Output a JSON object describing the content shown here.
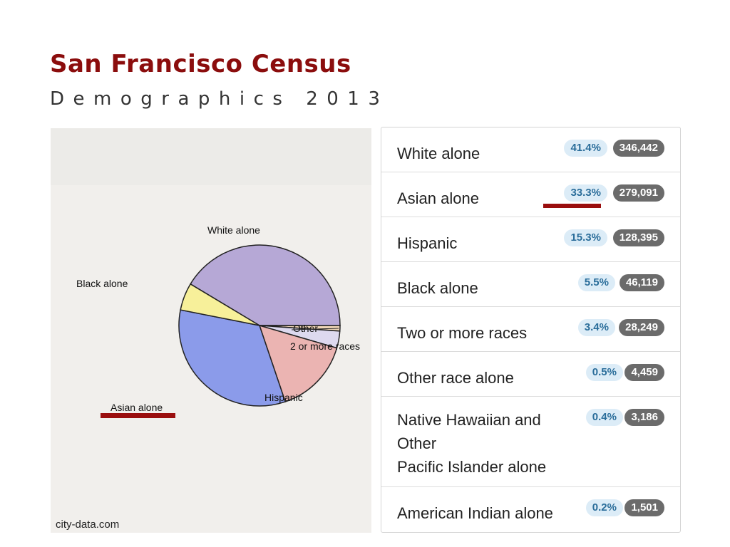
{
  "header": {
    "title": "San Francisco Census",
    "subtitle": "Demographics 2013"
  },
  "source": "city-data.com",
  "colors": {
    "accent": "#9a0e0e",
    "pct_bg": "#dcecf7",
    "pct_text": "#2a6d9a",
    "count_bg": "#6b6b6b"
  },
  "table": {
    "rows": [
      {
        "label": "White alone",
        "pct": "41.4%",
        "count": "346,442"
      },
      {
        "label": "Asian alone",
        "pct": "33.3%",
        "count": "279,091"
      },
      {
        "label": "Hispanic",
        "pct": "15.3%",
        "count": "128,395"
      },
      {
        "label": "Black alone",
        "pct": "5.5%",
        "count": "46,119"
      },
      {
        "label": "Two or more races",
        "pct": "3.4%",
        "count": "28,249"
      },
      {
        "label": "Other race alone",
        "pct": "0.5%",
        "count": "4,459"
      },
      {
        "label": "Native Hawaiian and\nOther\nPacific Islander alone",
        "pct": "0.4%",
        "count": "3,186"
      },
      {
        "label": "American Indian alone",
        "pct": "0.2%",
        "count": "1,501"
      }
    ]
  },
  "chart_data": {
    "type": "pie",
    "title": "",
    "slices": [
      {
        "label": "White alone",
        "value": 41.4,
        "color": "#b6a8d6"
      },
      {
        "label": "Other",
        "value": 1.1,
        "color": "#f1d7b8"
      },
      {
        "label": "2 or more races",
        "value": 3.4,
        "color": "#ddd9ef"
      },
      {
        "label": "Hispanic",
        "value": 15.3,
        "color": "#ebb4b2"
      },
      {
        "label": "Asian alone",
        "value": 33.3,
        "color": "#8b9bea"
      },
      {
        "label": "Black alone",
        "value": 5.5,
        "color": "#f7f09a"
      }
    ],
    "legend": "labels beside slices"
  }
}
